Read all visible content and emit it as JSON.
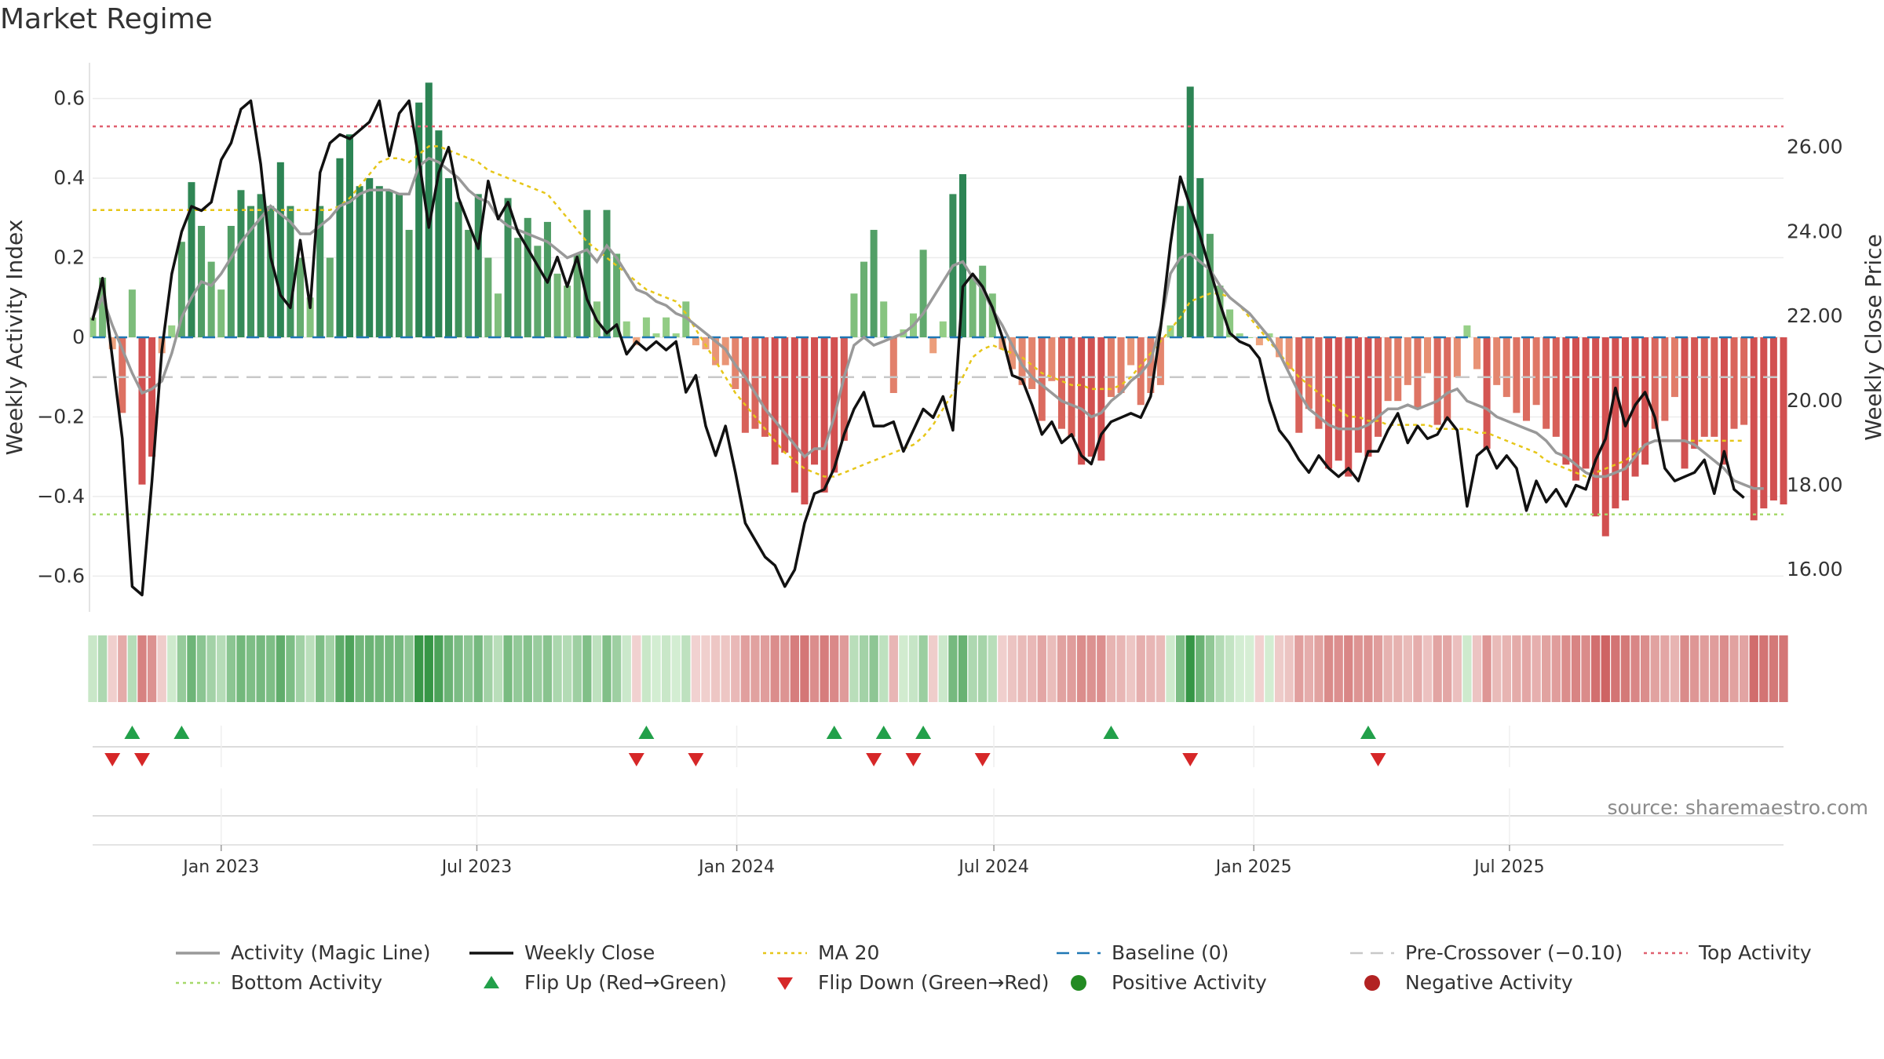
{
  "title": "Market Regime",
  "source": "source: sharemaestro.com",
  "chart_data": {
    "type": "bar",
    "y_left_label": "Weekly Activity Index",
    "y_right_label": "Weekly Close Price",
    "y_left_ticks": [
      0.6,
      0.4,
      0.2,
      0,
      -0.2,
      -0.4,
      -0.6
    ],
    "y_left_tick_labels": [
      "0.6",
      "0.4",
      "0.2",
      "0",
      "−0.2",
      "−0.4",
      "−0.6"
    ],
    "y_right_ticks": [
      26,
      24,
      22,
      20,
      18,
      16
    ],
    "y_right_tick_labels": [
      "26.00",
      "24.00",
      "22.00",
      "20.00",
      "18.00",
      "16.00"
    ],
    "ylim_left": [
      -0.69,
      0.69
    ],
    "ylim_right": [
      15.0,
      28.0
    ],
    "x_ticks": [
      {
        "date": "2023-01-01",
        "label": "Jan 2023"
      },
      {
        "date": "2023-07-01",
        "label": "Jul 2023"
      },
      {
        "date": "2024-01-01",
        "label": "Jan 2024"
      },
      {
        "date": "2024-07-01",
        "label": "Jul 2024"
      },
      {
        "date": "2025-01-01",
        "label": "Jan 2025"
      },
      {
        "date": "2025-07-01",
        "label": "Jul 2025"
      }
    ],
    "start_date": "2022-10-02",
    "reference_lines": {
      "top_activity": 0.53,
      "bottom_activity": -0.445,
      "pre_crossover": -0.1,
      "baseline": 0
    },
    "activity": [
      0.05,
      0.15,
      -0.03,
      -0.19,
      0.12,
      -0.37,
      -0.3,
      -0.04,
      0.03,
      0.24,
      0.39,
      0.28,
      0.19,
      0.12,
      0.28,
      0.37,
      0.33,
      0.36,
      0.33,
      0.44,
      0.33,
      0.2,
      0.1,
      0.33,
      0.2,
      0.45,
      0.51,
      0.38,
      0.4,
      0.38,
      0.37,
      0.36,
      0.27,
      0.59,
      0.64,
      0.52,
      0.4,
      0.34,
      0.27,
      0.36,
      0.2,
      0.11,
      0.35,
      0.25,
      0.3,
      0.23,
      0.29,
      0.16,
      0.13,
      0.21,
      0.32,
      0.09,
      0.32,
      0.21,
      0.04,
      -0.02,
      0.05,
      0.01,
      0.05,
      0.01,
      0.09,
      -0.02,
      -0.03,
      -0.07,
      -0.07,
      -0.13,
      -0.24,
      -0.23,
      -0.25,
      -0.32,
      -0.29,
      -0.39,
      -0.42,
      -0.32,
      -0.39,
      -0.34,
      -0.26,
      0.11,
      0.19,
      0.27,
      0.09,
      -0.14,
      0.02,
      0.06,
      0.22,
      -0.04,
      0.04,
      0.36,
      0.41,
      0.15,
      0.18,
      0.11,
      -0.03,
      -0.08,
      -0.12,
      -0.13,
      -0.21,
      -0.11,
      -0.23,
      -0.25,
      -0.32,
      -0.3,
      -0.31,
      -0.15,
      -0.14,
      -0.07,
      -0.17,
      -0.14,
      -0.12,
      0.03,
      0.33,
      0.63,
      0.4,
      0.26,
      0.13,
      0.07,
      0.01,
      0.0,
      -0.02,
      0.01,
      -0.05,
      -0.08,
      -0.24,
      -0.18,
      -0.23,
      -0.33,
      -0.31,
      -0.35,
      -0.29,
      -0.3,
      -0.25,
      -0.16,
      -0.16,
      -0.12,
      -0.18,
      -0.09,
      -0.22,
      -0.21,
      -0.1,
      0.03,
      -0.08,
      -0.28,
      -0.12,
      -0.15,
      -0.19,
      -0.21,
      -0.17,
      -0.23,
      -0.25,
      -0.32,
      -0.36,
      -0.33,
      -0.45,
      -0.5,
      -0.43,
      -0.41,
      -0.35,
      -0.32,
      -0.23,
      -0.21,
      -0.15,
      -0.33,
      -0.28,
      -0.25,
      -0.25,
      -0.32,
      -0.23,
      -0.22,
      -0.46,
      -0.43,
      -0.41,
      -0.42
    ],
    "weekly_close": [
      21.9,
      22.9,
      21.0,
      19.1,
      15.6,
      15.4,
      18.1,
      21.2,
      23.0,
      24.0,
      24.6,
      24.5,
      24.7,
      25.7,
      26.1,
      26.9,
      27.1,
      25.6,
      23.4,
      22.5,
      22.2,
      23.8,
      22.2,
      25.4,
      26.1,
      26.3,
      26.2,
      26.4,
      26.6,
      27.1,
      25.8,
      26.8,
      27.1,
      25.7,
      24.1,
      25.4,
      26.0,
      24.8,
      24.2,
      23.6,
      25.2,
      24.3,
      24.7,
      24.0,
      23.6,
      23.2,
      22.8,
      23.4,
      22.7,
      23.4,
      22.4,
      21.9,
      21.6,
      21.8,
      21.1,
      21.4,
      21.2,
      21.4,
      21.2,
      21.4,
      20.2,
      20.6,
      19.4,
      18.7,
      19.4,
      18.3,
      17.1,
      16.7,
      16.3,
      16.1,
      15.6,
      16.0,
      17.1,
      17.8,
      17.9,
      18.4,
      19.2,
      19.8,
      20.2,
      19.4,
      19.4,
      19.5,
      18.8,
      19.3,
      19.8,
      19.6,
      20.1,
      19.3,
      22.7,
      23.0,
      22.7,
      22.2,
      21.5,
      20.6,
      20.5,
      19.9,
      19.2,
      19.5,
      19.0,
      19.2,
      18.7,
      18.5,
      19.2,
      19.5,
      19.6,
      19.7,
      19.6,
      20.1,
      21.7,
      23.7,
      25.3,
      24.6,
      23.9,
      23.1,
      22.3,
      21.6,
      21.4,
      21.3,
      21.0,
      20.0,
      19.3,
      19.0,
      18.6,
      18.3,
      18.7,
      18.4,
      18.2,
      18.4,
      18.1,
      18.8,
      18.8,
      19.3,
      19.7,
      19.0,
      19.4,
      19.1,
      19.2,
      19.6,
      19.3,
      17.5,
      18.7,
      18.9,
      18.4,
      18.7,
      18.4,
      17.4,
      18.1,
      17.6,
      17.9,
      17.5,
      18.0,
      17.9,
      18.6,
      19.1,
      20.3,
      19.4,
      19.9,
      20.2,
      19.6,
      18.4,
      18.1,
      18.2,
      18.3,
      18.6,
      17.8,
      18.8,
      17.9,
      17.7
    ],
    "magic_line": [
      0.05,
      0.1,
      0.03,
      -0.03,
      -0.09,
      -0.14,
      -0.13,
      -0.11,
      -0.04,
      0.05,
      0.1,
      0.14,
      0.13,
      0.16,
      0.2,
      0.24,
      0.27,
      0.3,
      0.33,
      0.31,
      0.29,
      0.26,
      0.26,
      0.28,
      0.3,
      0.33,
      0.34,
      0.36,
      0.37,
      0.37,
      0.37,
      0.36,
      0.36,
      0.43,
      0.45,
      0.44,
      0.42,
      0.4,
      0.37,
      0.35,
      0.34,
      0.3,
      0.28,
      0.27,
      0.26,
      0.25,
      0.24,
      0.22,
      0.2,
      0.21,
      0.22,
      0.19,
      0.23,
      0.2,
      0.16,
      0.12,
      0.11,
      0.09,
      0.08,
      0.06,
      0.05,
      0.03,
      0.01,
      -0.01,
      -0.03,
      -0.07,
      -0.1,
      -0.14,
      -0.18,
      -0.21,
      -0.24,
      -0.27,
      -0.3,
      -0.28,
      -0.28,
      -0.2,
      -0.1,
      -0.02,
      0.0,
      -0.02,
      -0.01,
      0.0,
      0.01,
      0.03,
      0.06,
      0.1,
      0.14,
      0.18,
      0.19,
      0.15,
      0.12,
      0.07,
      0.03,
      -0.02,
      -0.07,
      -0.1,
      -0.12,
      -0.14,
      -0.16,
      -0.17,
      -0.18,
      -0.2,
      -0.19,
      -0.16,
      -0.14,
      -0.11,
      -0.09,
      -0.06,
      0.03,
      0.16,
      0.2,
      0.21,
      0.19,
      0.17,
      0.13,
      0.1,
      0.08,
      0.06,
      0.03,
      0.0,
      -0.04,
      -0.09,
      -0.14,
      -0.18,
      -0.2,
      -0.22,
      -0.23,
      -0.23,
      -0.23,
      -0.22,
      -0.2,
      -0.18,
      -0.18,
      -0.17,
      -0.18,
      -0.17,
      -0.16,
      -0.14,
      -0.13,
      -0.16,
      -0.17,
      -0.18,
      -0.2,
      -0.21,
      -0.22,
      -0.23,
      -0.24,
      -0.26,
      -0.29,
      -0.3,
      -0.32,
      -0.34,
      -0.35,
      -0.35,
      -0.34,
      -0.33,
      -0.3,
      -0.27,
      -0.26,
      -0.26,
      -0.26,
      -0.26,
      -0.27,
      -0.29,
      -0.31,
      -0.33,
      -0.36,
      -0.37,
      -0.38,
      -0.38
    ],
    "ma20": [
      0.32,
      0.32,
      0.32,
      0.32,
      0.32,
      0.32,
      0.32,
      0.32,
      0.32,
      0.32,
      0.32,
      0.32,
      0.32,
      0.32,
      0.32,
      0.32,
      0.32,
      0.32,
      0.32,
      0.32,
      0.32,
      0.32,
      0.32,
      0.32,
      0.32,
      0.33,
      0.35,
      0.38,
      0.41,
      0.44,
      0.45,
      0.45,
      0.44,
      0.46,
      0.48,
      0.48,
      0.47,
      0.46,
      0.45,
      0.44,
      0.42,
      0.41,
      0.4,
      0.39,
      0.38,
      0.37,
      0.36,
      0.33,
      0.3,
      0.27,
      0.24,
      0.22,
      0.2,
      0.18,
      0.16,
      0.14,
      0.12,
      0.11,
      0.1,
      0.09,
      0.06,
      0.02,
      -0.02,
      -0.06,
      -0.1,
      -0.14,
      -0.17,
      -0.2,
      -0.23,
      -0.26,
      -0.29,
      -0.31,
      -0.33,
      -0.34,
      -0.35,
      -0.35,
      -0.34,
      -0.33,
      -0.32,
      -0.31,
      -0.3,
      -0.29,
      -0.28,
      -0.27,
      -0.25,
      -0.22,
      -0.18,
      -0.14,
      -0.1,
      -0.05,
      -0.03,
      -0.02,
      -0.03,
      -0.04,
      -0.05,
      -0.07,
      -0.09,
      -0.1,
      -0.11,
      -0.12,
      -0.12,
      -0.13,
      -0.13,
      -0.13,
      -0.12,
      -0.1,
      -0.07,
      -0.04,
      -0.01,
      0.02,
      0.05,
      0.09,
      0.1,
      0.11,
      0.11,
      0.1,
      0.08,
      0.05,
      0.02,
      -0.01,
      -0.04,
      -0.07,
      -0.1,
      -0.12,
      -0.14,
      -0.16,
      -0.18,
      -0.2,
      -0.2,
      -0.21,
      -0.21,
      -0.22,
      -0.22,
      -0.22,
      -0.22,
      -0.22,
      -0.23,
      -0.23,
      -0.23,
      -0.23,
      -0.24,
      -0.24,
      -0.25,
      -0.26,
      -0.27,
      -0.28,
      -0.29,
      -0.31,
      -0.32,
      -0.33,
      -0.34,
      -0.35,
      -0.34,
      -0.33,
      -0.32,
      -0.31,
      -0.29,
      -0.27,
      -0.26,
      -0.26,
      -0.26,
      -0.26,
      -0.26,
      -0.26,
      -0.26,
      -0.26,
      -0.26,
      -0.26
    ],
    "flip_up_weeks": [
      4,
      9,
      56,
      75,
      80,
      84,
      103,
      129
    ],
    "flip_down_weeks": [
      2,
      5,
      55,
      61,
      79,
      83,
      90,
      111,
      130
    ],
    "legend": [
      {
        "label": "Activity (Magic Line)",
        "symbol": "line",
        "color": "#999999"
      },
      {
        "label": "Weekly Close",
        "symbol": "line",
        "color": "#111111"
      },
      {
        "label": "MA 20",
        "symbol": "dotted",
        "color": "#e6c619"
      },
      {
        "label": "Baseline (0)",
        "symbol": "dashed",
        "color": "#1f77b4"
      },
      {
        "label": "Pre-Crossover (−0.10)",
        "symbol": "dashed",
        "color": "#c8c8c8"
      },
      {
        "label": "Top Activity",
        "symbol": "dotted",
        "color": "#e06070"
      },
      {
        "label": "Bottom Activity",
        "symbol": "dotted",
        "color": "#a6d96a"
      },
      {
        "label": "Flip Up (Red→Green)",
        "symbol": "triangle-up",
        "color": "#22a04a"
      },
      {
        "label": "Flip Down (Green→Red)",
        "symbol": "triangle-down",
        "color": "#d62728"
      },
      {
        "label": "Positive Activity",
        "symbol": "circle",
        "color": "#228b22"
      },
      {
        "label": "Negative Activity",
        "symbol": "circle",
        "color": "#b22222"
      }
    ]
  }
}
